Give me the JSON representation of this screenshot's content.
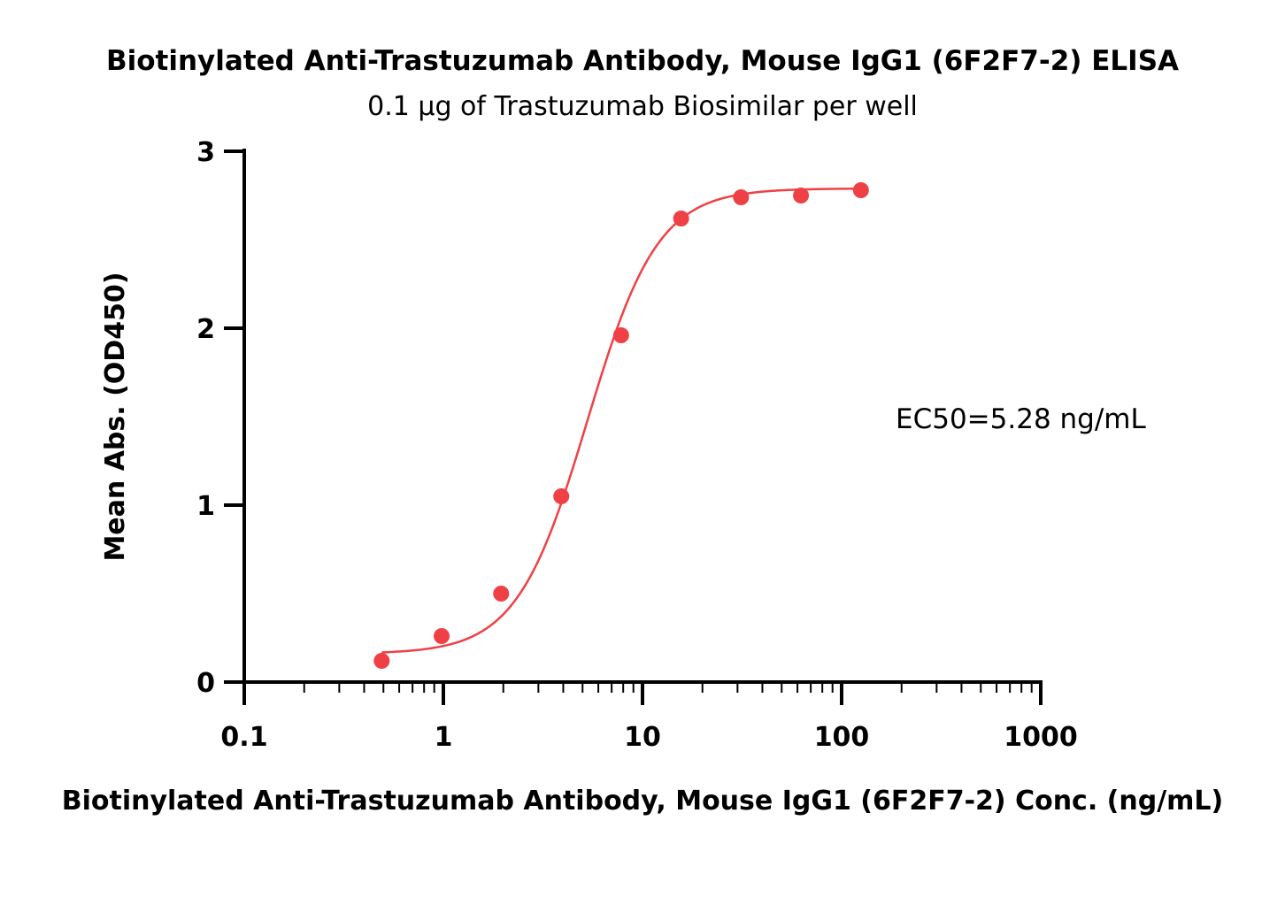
{
  "colors": {
    "series": "#ef4045",
    "axis": "#000000"
  },
  "chart_data": {
    "type": "scatter",
    "title": "Biotinylated Anti-Trastuzumab Antibody, Mouse IgG1 (6F2F7-2) ELISA",
    "subtitle": "0.1 µg of Trastuzumab Biosimilar per well",
    "xlabel": "Biotinylated Anti-Trastuzumab Antibody, Mouse IgG1 (6F2F7-2) Conc. (ng/mL)",
    "ylabel": "Mean Abs. (OD450)",
    "xscale": "log",
    "xlim": [
      0.1,
      1000
    ],
    "ylim": [
      0,
      3
    ],
    "xticks": [
      "0.1",
      "1",
      "10",
      "100",
      "1000"
    ],
    "yticks": [
      "0",
      "1",
      "2",
      "3"
    ],
    "grid": false,
    "series": [
      {
        "x": [
          0.49,
          0.98,
          1.95,
          3.91,
          7.81,
          15.63,
          31.25,
          62.5,
          125
        ],
        "y": [
          0.12,
          0.26,
          0.5,
          1.05,
          1.96,
          2.62,
          2.74,
          2.75,
          2.78
        ]
      }
    ],
    "fit": {
      "bottom": 0.16,
      "top": 2.79,
      "ec50": 5.28,
      "hill": 2.45
    },
    "annotation": "EC50=5.28 ng/mL"
  }
}
